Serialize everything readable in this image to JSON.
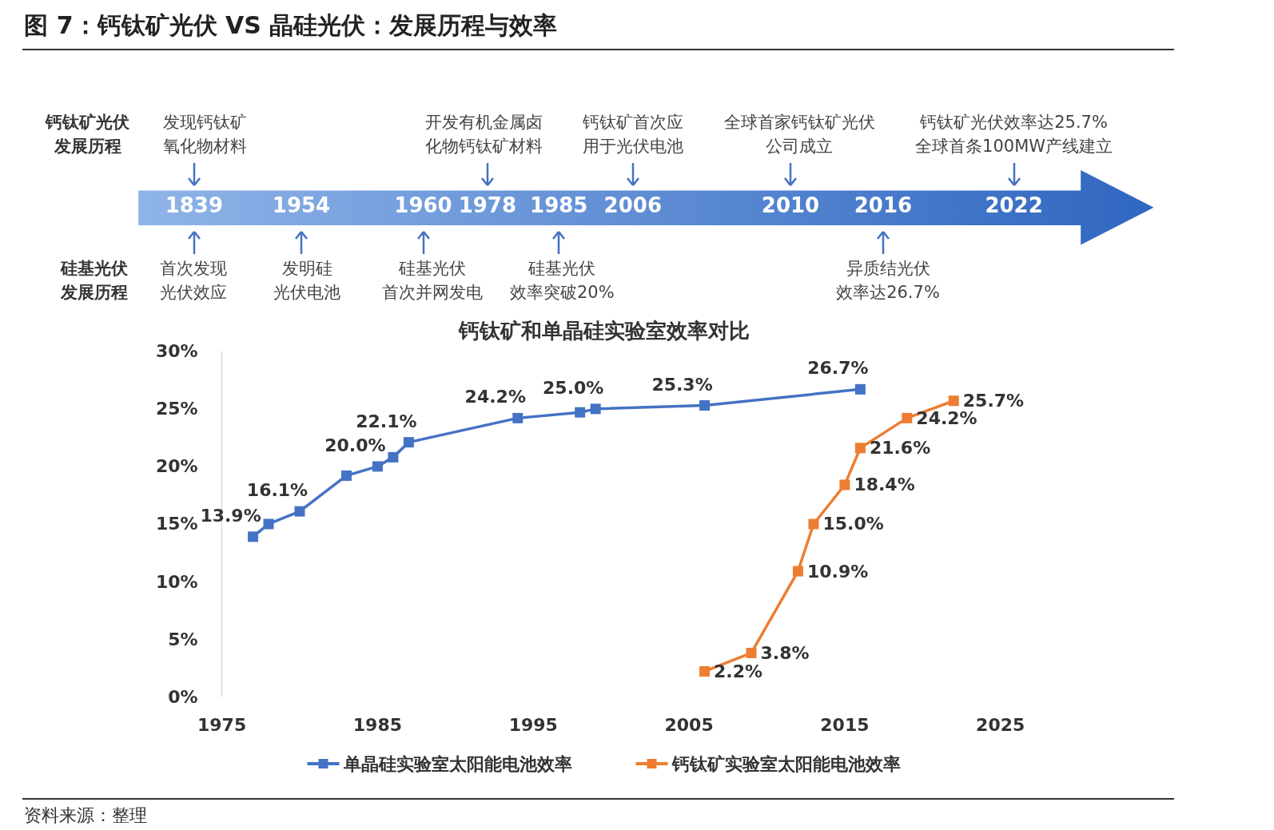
{
  "chart_data": [
    {
      "type": "other",
      "title": "图 7：钙钛矿光伏 VS 晶硅光伏：发展历程与效率",
      "categories": [
        "1839",
        "1954",
        "1960",
        "1978",
        "1985",
        "2006",
        "2010",
        "2016",
        "2022"
      ],
      "annotations": [
        "钙钛矿光伏发展历程",
        "硅基光伏发展历程",
        "发现钙钛矿氧化物材料",
        "开发有机金属卤化物钙钛矿材料",
        "钙钛矿首次应用于光伏电池",
        "全球首家钙钛矿光伏公司成立",
        "钙钛矿光伏效率达25.7%全球首条100MW产线建立",
        "首次发现光伏效应",
        "发明硅光伏电池",
        "硅基光伏首次并网发电",
        "硅基光伏效率突破20%",
        "异质结光伏效率达26.7%"
      ]
    },
    {
      "type": "line",
      "title": "钙钛矿和单晶硅实验室效率对比",
      "xlim": [
        1975,
        2025
      ],
      "xticks": [
        1975,
        1985,
        1995,
        2005,
        2015,
        2025
      ],
      "ylim": [
        0,
        30
      ],
      "yticks": [
        {
          "value": 0,
          "label": "0%"
        },
        {
          "value": 5,
          "label": "5%"
        },
        {
          "value": 10,
          "label": "10%"
        },
        {
          "value": 15,
          "label": "15%"
        },
        {
          "value": 20,
          "label": "20%"
        },
        {
          "value": 25,
          "label": "25%"
        },
        {
          "value": 30,
          "label": "30%"
        }
      ],
      "grid": false,
      "legend": "bottom",
      "marker": "square",
      "series": [
        {
          "name": "单晶硅实验室太阳能电池效率",
          "color": "#4472c4",
          "x": [
            1977,
            1978,
            1980,
            1983,
            1985,
            1986,
            1987,
            1994,
            1998,
            1999,
            2006,
            2016
          ],
          "values": [
            13.9,
            15.0,
            16.1,
            19.2,
            20.0,
            20.8,
            22.1,
            24.2,
            24.7,
            25.0,
            25.3,
            26.7
          ],
          "value_labels": [
            "13.9%",
            null,
            "16.1%",
            null,
            "20.0%",
            null,
            "22.1%",
            "24.2%",
            null,
            "25.0%",
            "25.3%",
            "26.7%"
          ]
        },
        {
          "name": "钙钛矿实验室太阳能电池效率",
          "color": "#ed7d31",
          "x": [
            2006,
            2009,
            2012,
            2013,
            2015,
            2016,
            2019,
            2022
          ],
          "values": [
            2.2,
            3.8,
            10.9,
            15.0,
            18.4,
            21.6,
            24.2,
            25.7
          ],
          "value_labels": [
            "2.2%",
            "3.8%",
            "10.9%",
            "15.0%",
            "18.4%",
            "21.6%",
            "24.2%",
            "25.7%"
          ]
        }
      ],
      "annotations": [
        "资料来源：整理"
      ]
    }
  ]
}
